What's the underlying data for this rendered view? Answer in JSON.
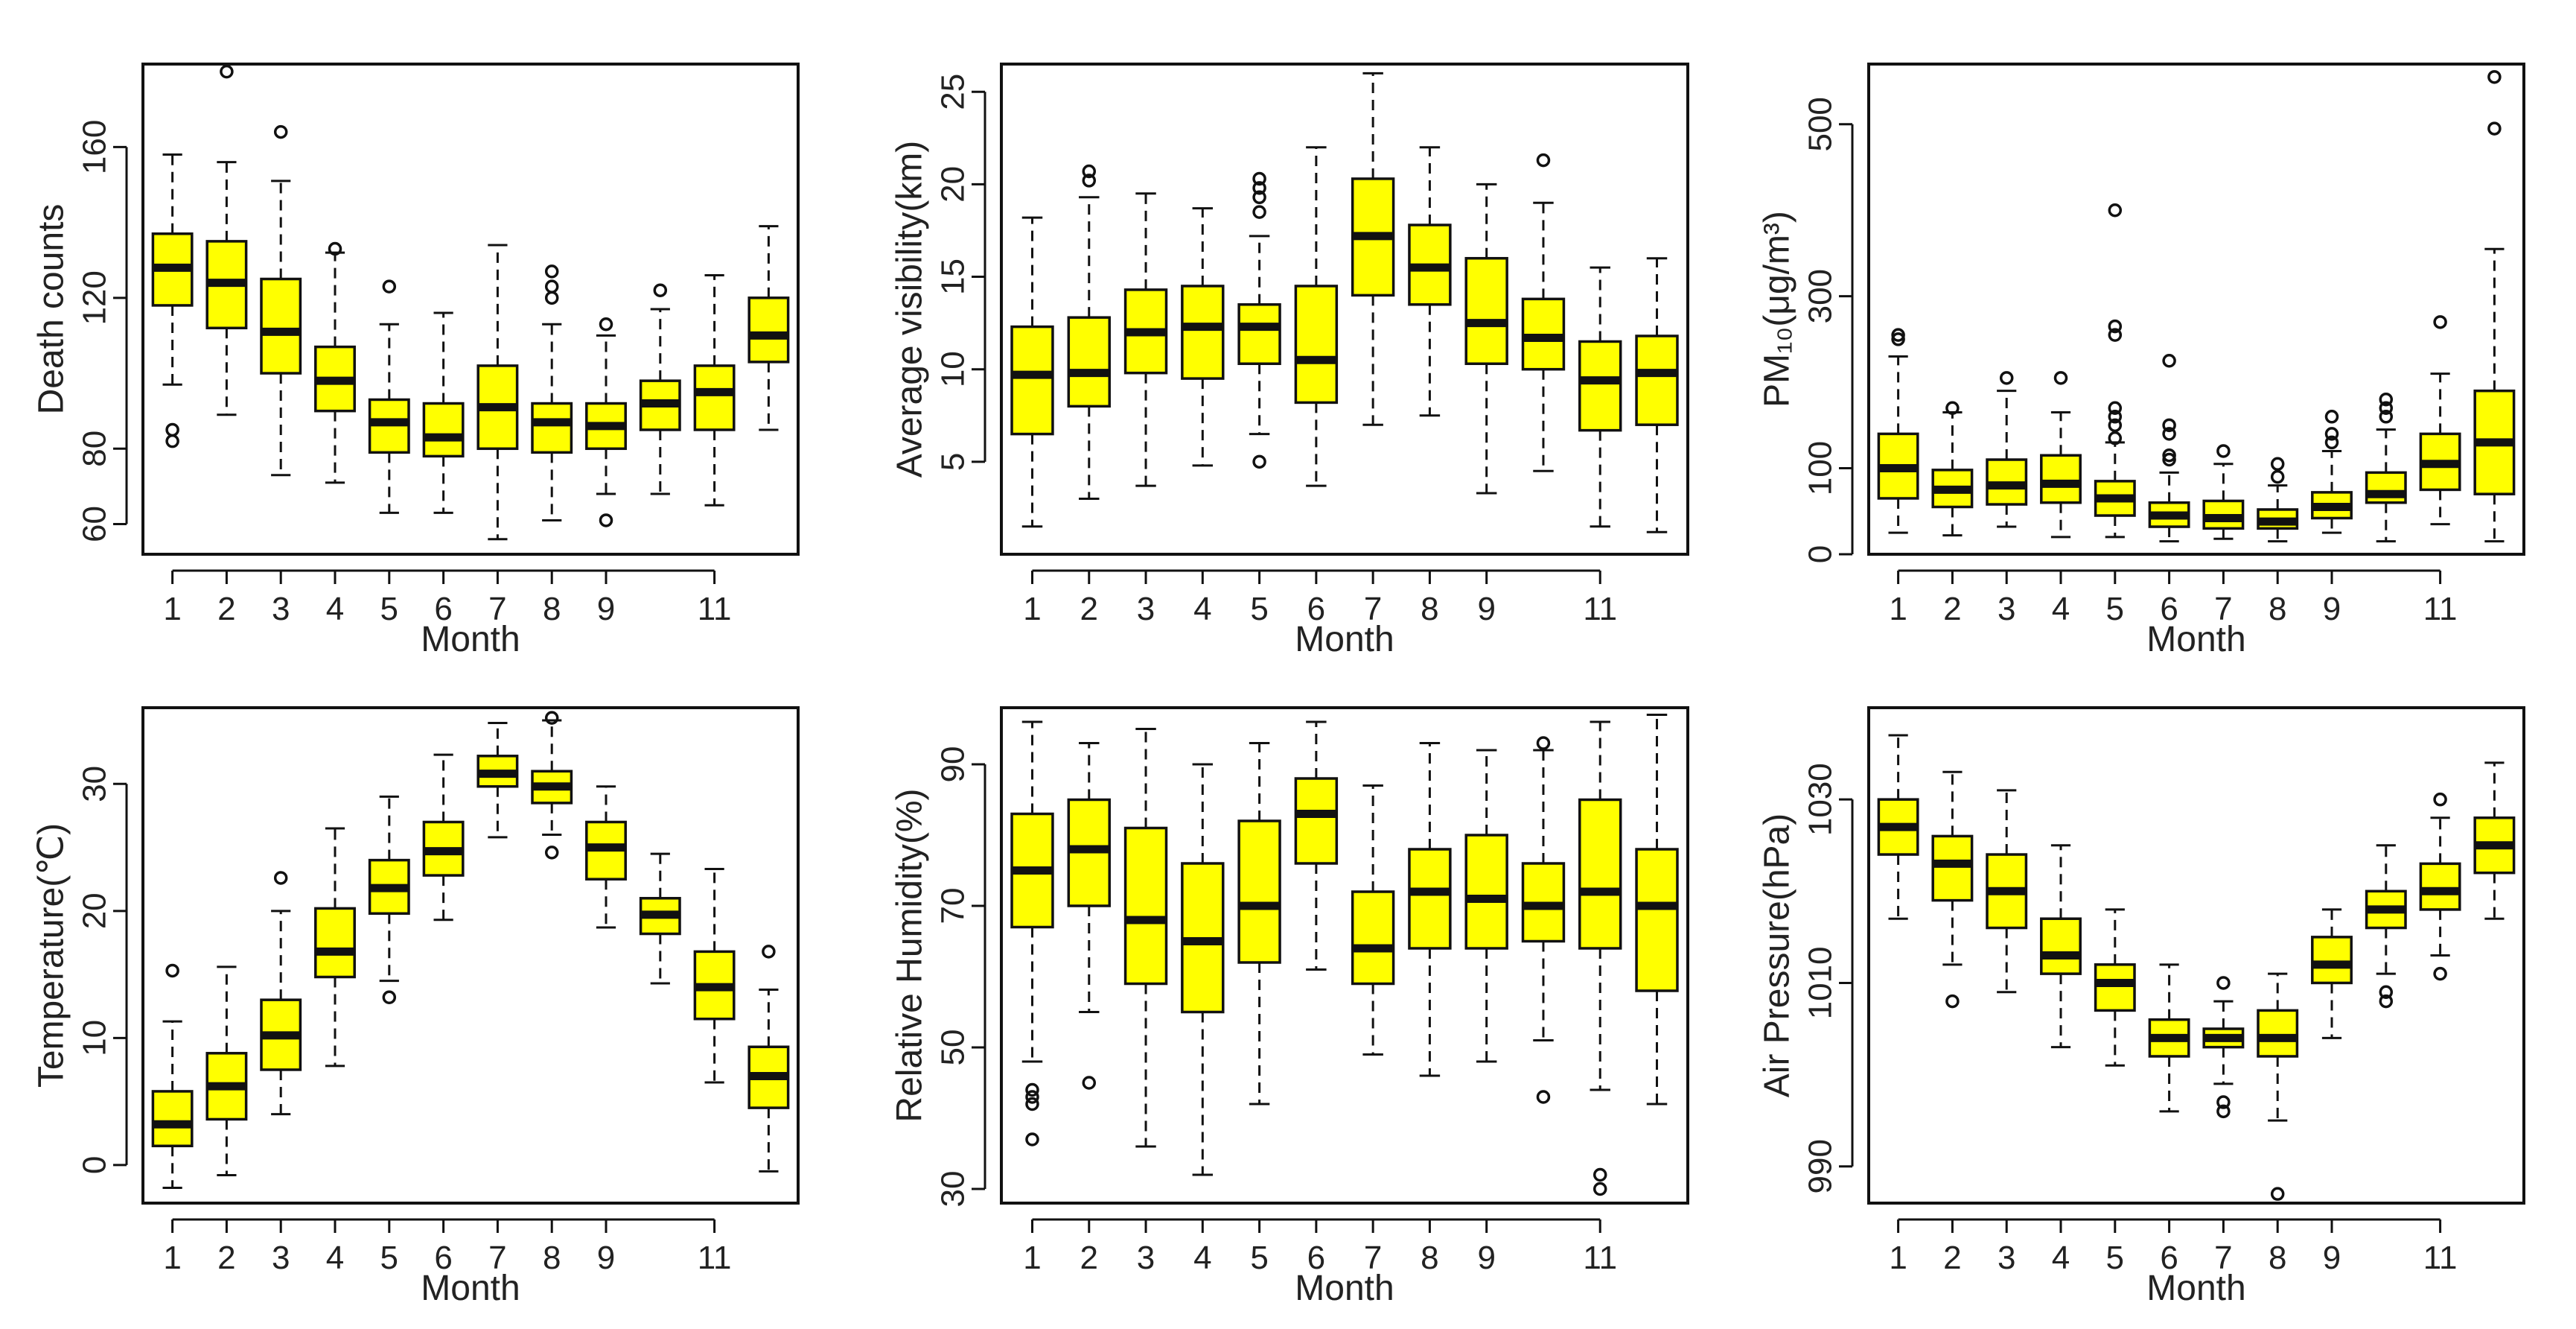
{
  "colors": {
    "box_fill": "#ffff00",
    "stroke": "#111111"
  },
  "chart_data": [
    {
      "type": "boxplot",
      "xlabel": "Month",
      "ylabel": "Death counts",
      "ylim": [
        52,
        182
      ],
      "yticks": [
        60,
        80,
        120,
        160
      ],
      "xtick_labels": [
        "1",
        "2",
        "3",
        "4",
        "5",
        "6",
        "7",
        "8",
        "9",
        "11"
      ],
      "xtick_positions": [
        1,
        2,
        3,
        4,
        5,
        6,
        7,
        8,
        9,
        11
      ],
      "boxes": [
        {
          "month": 1,
          "low": 97,
          "q1": 118,
          "median": 128,
          "q3": 137,
          "high": 158,
          "outliers": [
            82,
            85
          ]
        },
        {
          "month": 2,
          "low": 89,
          "q1": 112,
          "median": 124,
          "q3": 135,
          "high": 156,
          "outliers": [
            180
          ]
        },
        {
          "month": 3,
          "low": 73,
          "q1": 100,
          "median": 111,
          "q3": 125,
          "high": 151,
          "outliers": [
            164
          ]
        },
        {
          "month": 4,
          "low": 71,
          "q1": 90,
          "median": 98,
          "q3": 107,
          "high": 132,
          "outliers": [
            133
          ]
        },
        {
          "month": 5,
          "low": 63,
          "q1": 79,
          "median": 87,
          "q3": 93,
          "high": 113,
          "outliers": [
            123
          ]
        },
        {
          "month": 6,
          "low": 63,
          "q1": 78,
          "median": 83,
          "q3": 92,
          "high": 116,
          "outliers": []
        },
        {
          "month": 7,
          "low": 56,
          "q1": 80,
          "median": 91,
          "q3": 102,
          "high": 134,
          "outliers": []
        },
        {
          "month": 8,
          "low": 61,
          "q1": 79,
          "median": 87,
          "q3": 92,
          "high": 113,
          "outliers": [
            120,
            123,
            127
          ]
        },
        {
          "month": 9,
          "low": 68,
          "q1": 80,
          "median": 86,
          "q3": 92,
          "high": 110,
          "outliers": [
            61,
            113
          ]
        },
        {
          "month": 10,
          "low": 68,
          "q1": 85,
          "median": 92,
          "q3": 98,
          "high": 117,
          "outliers": [
            122
          ]
        },
        {
          "month": 11,
          "low": 65,
          "q1": 85,
          "median": 95,
          "q3": 102,
          "high": 126,
          "outliers": []
        },
        {
          "month": 12,
          "low": 85,
          "q1": 103,
          "median": 110,
          "q3": 120,
          "high": 139,
          "outliers": []
        }
      ]
    },
    {
      "type": "boxplot",
      "xlabel": "Month",
      "ylabel": "Average visibility(km)",
      "ylim": [
        0,
        26.5
      ],
      "yticks": [
        5,
        10,
        15,
        20,
        25
      ],
      "xtick_labels": [
        "1",
        "2",
        "3",
        "4",
        "5",
        "6",
        "7",
        "8",
        "9",
        "11"
      ],
      "xtick_positions": [
        1,
        2,
        3,
        4,
        5,
        6,
        7,
        8,
        9,
        11
      ],
      "boxes": [
        {
          "month": 1,
          "low": 1.5,
          "q1": 6.5,
          "median": 9.7,
          "q3": 12.3,
          "high": 18.2,
          "outliers": []
        },
        {
          "month": 2,
          "low": 3.0,
          "q1": 8.0,
          "median": 9.8,
          "q3": 12.8,
          "high": 19.3,
          "outliers": [
            20.2,
            20.7
          ]
        },
        {
          "month": 3,
          "low": 3.7,
          "q1": 9.8,
          "median": 12.0,
          "q3": 14.3,
          "high": 19.5,
          "outliers": []
        },
        {
          "month": 4,
          "low": 4.8,
          "q1": 9.5,
          "median": 12.3,
          "q3": 14.5,
          "high": 18.7,
          "outliers": []
        },
        {
          "month": 5,
          "low": 6.5,
          "q1": 10.3,
          "median": 12.3,
          "q3": 13.5,
          "high": 17.2,
          "outliers": [
            5.0,
            18.5,
            19.3,
            19.8,
            20.3
          ]
        },
        {
          "month": 6,
          "low": 3.7,
          "q1": 8.2,
          "median": 10.5,
          "q3": 14.5,
          "high": 22.0,
          "outliers": []
        },
        {
          "month": 7,
          "low": 7.0,
          "q1": 14.0,
          "median": 17.2,
          "q3": 20.3,
          "high": 26.0,
          "outliers": []
        },
        {
          "month": 8,
          "low": 7.5,
          "q1": 13.5,
          "median": 15.5,
          "q3": 17.8,
          "high": 22.0,
          "outliers": []
        },
        {
          "month": 9,
          "low": 3.3,
          "q1": 10.3,
          "median": 12.5,
          "q3": 16.0,
          "high": 20.0,
          "outliers": []
        },
        {
          "month": 10,
          "low": 4.5,
          "q1": 10.0,
          "median": 11.7,
          "q3": 13.8,
          "high": 19.0,
          "outliers": [
            21.3
          ]
        },
        {
          "month": 11,
          "low": 1.5,
          "q1": 6.7,
          "median": 9.4,
          "q3": 11.5,
          "high": 15.5,
          "outliers": []
        },
        {
          "month": 12,
          "low": 1.2,
          "q1": 7.0,
          "median": 9.8,
          "q3": 11.8,
          "high": 16.0,
          "outliers": []
        }
      ]
    },
    {
      "type": "boxplot",
      "xlabel": "Month",
      "ylabel": "PM₁₀(μg/m³)",
      "ylim": [
        0,
        570
      ],
      "yticks": [
        0,
        100,
        300,
        500
      ],
      "xtick_labels": [
        "1",
        "2",
        "3",
        "4",
        "5",
        "6",
        "7",
        "8",
        "9",
        "11"
      ],
      "xtick_positions": [
        1,
        2,
        3,
        4,
        5,
        6,
        7,
        8,
        9,
        11
      ],
      "boxes": [
        {
          "month": 1,
          "low": 25,
          "q1": 65,
          "median": 100,
          "q3": 140,
          "high": 230,
          "outliers": [
            250,
            255
          ]
        },
        {
          "month": 2,
          "low": 22,
          "q1": 55,
          "median": 75,
          "q3": 98,
          "high": 165,
          "outliers": [
            170
          ]
        },
        {
          "month": 3,
          "low": 32,
          "q1": 58,
          "median": 80,
          "q3": 110,
          "high": 190,
          "outliers": [
            205
          ]
        },
        {
          "month": 4,
          "low": 20,
          "q1": 60,
          "median": 82,
          "q3": 115,
          "high": 165,
          "outliers": [
            205
          ]
        },
        {
          "month": 5,
          "low": 20,
          "q1": 45,
          "median": 65,
          "q3": 85,
          "high": 130,
          "outliers": [
            135,
            150,
            160,
            170,
            255,
            265,
            400
          ]
        },
        {
          "month": 6,
          "low": 15,
          "q1": 32,
          "median": 45,
          "q3": 60,
          "high": 95,
          "outliers": [
            110,
            115,
            140,
            150,
            225
          ]
        },
        {
          "month": 7,
          "low": 18,
          "q1": 30,
          "median": 42,
          "q3": 62,
          "high": 105,
          "outliers": [
            120
          ]
        },
        {
          "month": 8,
          "low": 15,
          "q1": 30,
          "median": 38,
          "q3": 52,
          "high": 80,
          "outliers": [
            90,
            105
          ]
        },
        {
          "month": 9,
          "low": 25,
          "q1": 42,
          "median": 55,
          "q3": 72,
          "high": 120,
          "outliers": [
            130,
            140,
            160
          ]
        },
        {
          "month": 10,
          "low": 15,
          "q1": 60,
          "median": 70,
          "q3": 95,
          "high": 145,
          "outliers": [
            160,
            170,
            180
          ]
        },
        {
          "month": 11,
          "low": 35,
          "q1": 75,
          "median": 105,
          "q3": 140,
          "high": 210,
          "outliers": [
            270
          ]
        },
        {
          "month": 12,
          "low": 15,
          "q1": 70,
          "median": 130,
          "q3": 190,
          "high": 355,
          "outliers": [
            495,
            555
          ]
        }
      ]
    },
    {
      "type": "boxplot",
      "xlabel": "Month",
      "ylabel": "Temperature(℃)",
      "ylim": [
        -3,
        36
      ],
      "yticks": [
        0,
        10,
        20,
        30
      ],
      "xtick_labels": [
        "1",
        "2",
        "3",
        "4",
        "5",
        "6",
        "7",
        "8",
        "9",
        "11"
      ],
      "xtick_positions": [
        1,
        2,
        3,
        4,
        5,
        6,
        7,
        8,
        9,
        11
      ],
      "boxes": [
        {
          "month": 1,
          "low": -1.8,
          "q1": 1.5,
          "median": 3.2,
          "q3": 5.8,
          "high": 11.3,
          "outliers": [
            15.3
          ]
        },
        {
          "month": 2,
          "low": -0.8,
          "q1": 3.6,
          "median": 6.2,
          "q3": 8.8,
          "high": 15.6,
          "outliers": []
        },
        {
          "month": 3,
          "low": 4.0,
          "q1": 7.5,
          "median": 10.2,
          "q3": 13.0,
          "high": 20.0,
          "outliers": [
            22.6
          ]
        },
        {
          "month": 4,
          "low": 7.8,
          "q1": 14.8,
          "median": 16.8,
          "q3": 20.2,
          "high": 26.5,
          "outliers": []
        },
        {
          "month": 5,
          "low": 14.5,
          "q1": 19.8,
          "median": 21.8,
          "q3": 24.0,
          "high": 29.0,
          "outliers": [
            13.2
          ]
        },
        {
          "month": 6,
          "low": 19.3,
          "q1": 22.8,
          "median": 24.7,
          "q3": 27.0,
          "high": 32.3,
          "outliers": []
        },
        {
          "month": 7,
          "low": 25.8,
          "q1": 29.8,
          "median": 30.8,
          "q3": 32.2,
          "high": 34.8,
          "outliers": []
        },
        {
          "month": 8,
          "low": 26.0,
          "q1": 28.5,
          "median": 29.8,
          "q3": 31.0,
          "high": 35.0,
          "outliers": [
            24.6,
            35.2
          ]
        },
        {
          "month": 9,
          "low": 18.7,
          "q1": 22.5,
          "median": 25.0,
          "q3": 27.0,
          "high": 29.8,
          "outliers": []
        },
        {
          "month": 10,
          "low": 14.3,
          "q1": 18.2,
          "median": 19.7,
          "q3": 21.0,
          "high": 24.5,
          "outliers": []
        },
        {
          "month": 11,
          "low": 6.5,
          "q1": 11.5,
          "median": 14.0,
          "q3": 16.8,
          "high": 23.3,
          "outliers": []
        },
        {
          "month": 12,
          "low": -0.5,
          "q1": 4.5,
          "median": 7.0,
          "q3": 9.3,
          "high": 13.8,
          "outliers": [
            16.8
          ]
        }
      ]
    },
    {
      "type": "boxplot",
      "xlabel": "Month",
      "ylabel": "Relative Humidity(%)",
      "ylim": [
        28,
        98
      ],
      "yticks": [
        30,
        50,
        70,
        90
      ],
      "xtick_labels": [
        "1",
        "2",
        "3",
        "4",
        "5",
        "6",
        "7",
        "8",
        "9",
        "11"
      ],
      "xtick_positions": [
        1,
        2,
        3,
        4,
        5,
        6,
        7,
        8,
        9,
        11
      ],
      "boxes": [
        {
          "month": 1,
          "low": 48,
          "q1": 67,
          "median": 75,
          "q3": 83,
          "high": 96,
          "outliers": [
            37,
            42,
            43,
            44
          ]
        },
        {
          "month": 2,
          "low": 55,
          "q1": 70,
          "median": 78,
          "q3": 85,
          "high": 93,
          "outliers": [
            45
          ]
        },
        {
          "month": 3,
          "low": 36,
          "q1": 59,
          "median": 68,
          "q3": 81,
          "high": 95,
          "outliers": []
        },
        {
          "month": 4,
          "low": 32,
          "q1": 55,
          "median": 65,
          "q3": 76,
          "high": 90,
          "outliers": []
        },
        {
          "month": 5,
          "low": 42,
          "q1": 62,
          "median": 70,
          "q3": 82,
          "high": 93,
          "outliers": []
        },
        {
          "month": 6,
          "low": 61,
          "q1": 76,
          "median": 83,
          "q3": 88,
          "high": 96,
          "outliers": []
        },
        {
          "month": 7,
          "low": 49,
          "q1": 59,
          "median": 64,
          "q3": 72,
          "high": 87,
          "outliers": []
        },
        {
          "month": 8,
          "low": 46,
          "q1": 64,
          "median": 72,
          "q3": 78,
          "high": 93,
          "outliers": []
        },
        {
          "month": 9,
          "low": 48,
          "q1": 64,
          "median": 71,
          "q3": 80,
          "high": 92,
          "outliers": []
        },
        {
          "month": 10,
          "low": 51,
          "q1": 65,
          "median": 70,
          "q3": 76,
          "high": 92,
          "outliers": [
            43,
            93
          ]
        },
        {
          "month": 11,
          "low": 44,
          "q1": 64,
          "median": 72,
          "q3": 85,
          "high": 96,
          "outliers": [
            30,
            32
          ]
        },
        {
          "month": 12,
          "low": 42,
          "q1": 58,
          "median": 70,
          "q3": 78,
          "high": 97,
          "outliers": []
        }
      ]
    },
    {
      "type": "boxplot",
      "xlabel": "Month",
      "ylabel": "Air Pressure(hPa)",
      "ylim": [
        986,
        1040
      ],
      "yticks": [
        990,
        1010,
        1030
      ],
      "xtick_labels": [
        "1",
        "2",
        "3",
        "4",
        "5",
        "6",
        "7",
        "8",
        "9",
        "11"
      ],
      "xtick_positions": [
        1,
        2,
        3,
        4,
        5,
        6,
        7,
        8,
        9,
        11
      ],
      "boxes": [
        {
          "month": 1,
          "low": 1017,
          "q1": 1024,
          "median": 1027,
          "q3": 1030,
          "high": 1037,
          "outliers": []
        },
        {
          "month": 2,
          "low": 1012,
          "q1": 1019,
          "median": 1023,
          "q3": 1026,
          "high": 1033,
          "outliers": [
            1008
          ]
        },
        {
          "month": 3,
          "low": 1009,
          "q1": 1016,
          "median": 1020,
          "q3": 1024,
          "high": 1031,
          "outliers": []
        },
        {
          "month": 4,
          "low": 1003,
          "q1": 1011,
          "median": 1013,
          "q3": 1017,
          "high": 1025,
          "outliers": []
        },
        {
          "month": 5,
          "low": 1001,
          "q1": 1007,
          "median": 1010,
          "q3": 1012,
          "high": 1018,
          "outliers": []
        },
        {
          "month": 6,
          "low": 996,
          "q1": 1002,
          "median": 1004,
          "q3": 1006,
          "high": 1012,
          "outliers": []
        },
        {
          "month": 7,
          "low": 999,
          "q1": 1003,
          "median": 1004,
          "q3": 1005,
          "high": 1008,
          "outliers": [
            996,
            997,
            1010
          ]
        },
        {
          "month": 8,
          "low": 995,
          "q1": 1002,
          "median": 1004,
          "q3": 1007,
          "high": 1011,
          "outliers": [
            987
          ]
        },
        {
          "month": 9,
          "low": 1004,
          "q1": 1010,
          "median": 1012,
          "q3": 1015,
          "high": 1018,
          "outliers": []
        },
        {
          "month": 10,
          "low": 1011,
          "q1": 1016,
          "median": 1018,
          "q3": 1020,
          "high": 1025,
          "outliers": [
            1008,
            1009
          ]
        },
        {
          "month": 11,
          "low": 1013,
          "q1": 1018,
          "median": 1020,
          "q3": 1023,
          "high": 1028,
          "outliers": [
            1011,
            1030
          ]
        },
        {
          "month": 12,
          "low": 1017,
          "q1": 1022,
          "median": 1025,
          "q3": 1028,
          "high": 1034,
          "outliers": []
        }
      ]
    }
  ]
}
